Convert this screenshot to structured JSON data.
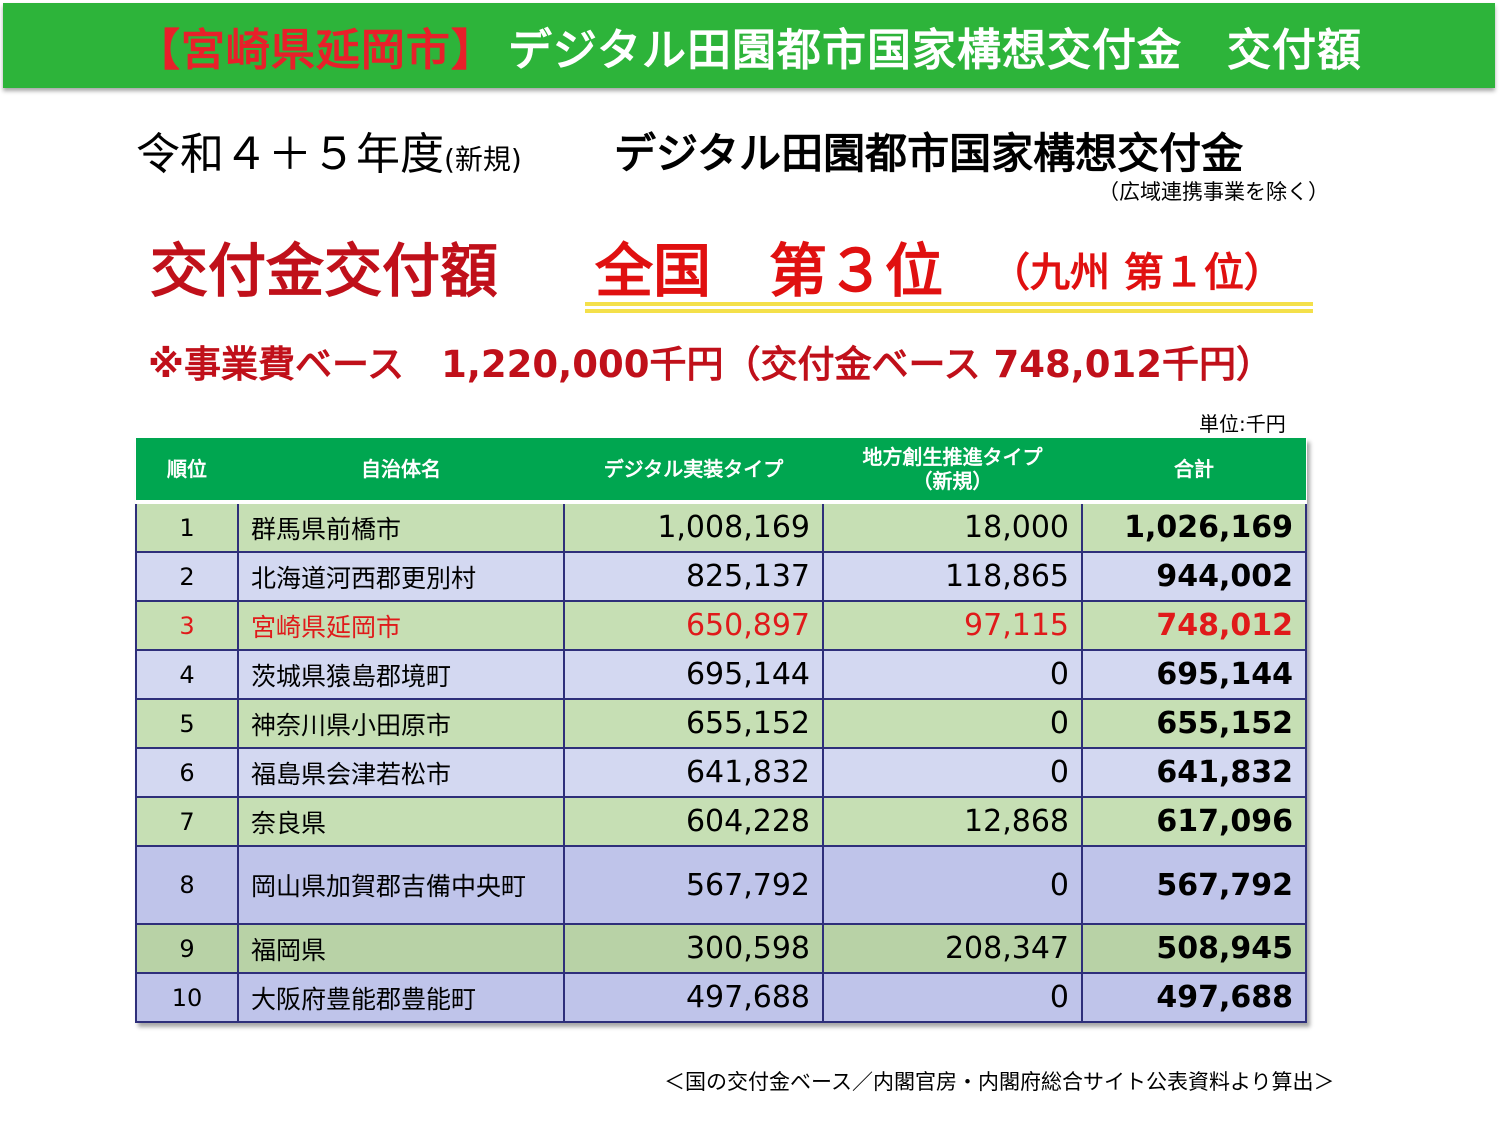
{
  "banner": {
    "city": "【宮崎県延岡市】",
    "title": "デジタル田園都市国家構想交付金　交付額"
  },
  "subtitle": {
    "year": "令和４＋５年度",
    "new_tag": "(新規)",
    "grant": "デジタル田園都市国家構想交付金",
    "exclusion": "（広域連携事業を除く）"
  },
  "headline": {
    "main": "交付金交付額",
    "rank": "全国　第３位",
    "kyushu": "（九州 第１位）"
  },
  "basis": "※事業費ベース　1,220,000千円（交付金ベース 748,012千円）",
  "unit": "単位:千円",
  "table": {
    "headers": {
      "rank": "順位",
      "name": "自治体名",
      "digital": "デジタル実装タイプ",
      "regional_line1": "地方創生推進タイプ",
      "regional_line2": "（新規）",
      "total": "合計"
    },
    "rows": [
      {
        "rank": "1",
        "name": "群馬県前橋市",
        "digital": "1,008,169",
        "regional": "18,000",
        "total": "1,026,169"
      },
      {
        "rank": "2",
        "name": "北海道河西郡更別村",
        "digital": "825,137",
        "regional": "118,865",
        "total": "944,002"
      },
      {
        "rank": "3",
        "name": "宮崎県延岡市",
        "digital": "650,897",
        "regional": "97,115",
        "total": "748,012"
      },
      {
        "rank": "4",
        "name": "茨城県猿島郡境町",
        "digital": "695,144",
        "regional": "0",
        "total": "695,144"
      },
      {
        "rank": "5",
        "name": "神奈川県小田原市",
        "digital": "655,152",
        "regional": "0",
        "total": "655,152"
      },
      {
        "rank": "6",
        "name": "福島県会津若松市",
        "digital": "641,832",
        "regional": "0",
        "total": "641,832"
      },
      {
        "rank": "7",
        "name": "奈良県",
        "digital": "604,228",
        "regional": "12,868",
        "total": "617,096"
      },
      {
        "rank": "8",
        "name": "岡山県加賀郡吉備中央町",
        "digital": "567,792",
        "regional": "0",
        "total": "567,792"
      },
      {
        "rank": "9",
        "name": "福岡県",
        "digital": "300,598",
        "regional": "208,347",
        "total": "508,945"
      },
      {
        "rank": "10",
        "name": "大阪府豊能郡豊能町",
        "digital": "497,688",
        "regional": "0",
        "total": "497,688"
      }
    ]
  },
  "source": "＜国の交付金ベース／内閣官房・内閣府総合サイト公表資料より算出＞",
  "colors": {
    "banner_green": "#2db43a",
    "header_green": "#00a650",
    "highlight_red": "#e01a1a",
    "underline_yellow": "#f4e04a"
  }
}
